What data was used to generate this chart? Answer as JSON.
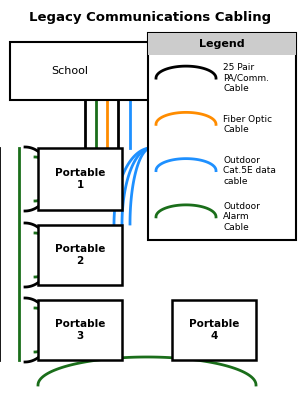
{
  "title": "Legacy Communications Cabling",
  "background_color": "#ffffff",
  "school_label": "School",
  "cable_colors": {
    "black": "#000000",
    "orange": "#FF8C00",
    "green": "#1a6e1a",
    "blue": "#1e90ff"
  },
  "legend": {
    "entries": [
      {
        "color": "#000000",
        "label": "25 Pair\nPA/Comm.\nCable"
      },
      {
        "color": "#FF8C00",
        "label": "Fiber Optic\nCable"
      },
      {
        "color": "#1e90ff",
        "label": "Outdoor\nCat.5E data\ncable"
      },
      {
        "color": "#1a6e1a",
        "label": "Outdoor\nAlarm\nCable"
      }
    ]
  }
}
